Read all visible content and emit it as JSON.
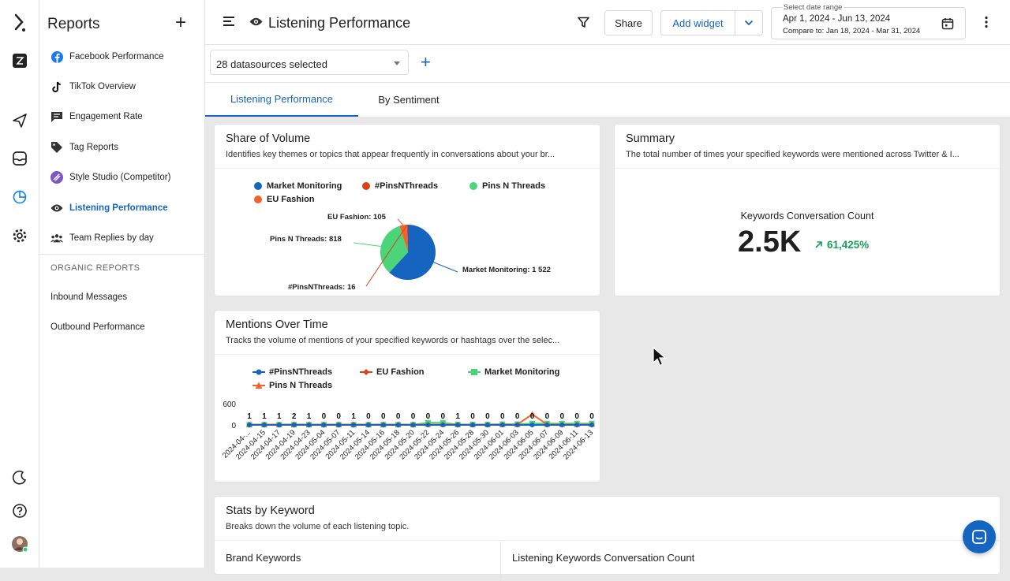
{
  "sidebar": {
    "title": "Reports",
    "items": [
      {
        "label": "Facebook Performance",
        "icon": "facebook-icon"
      },
      {
        "label": "TikTok Overview",
        "icon": "tiktok-icon"
      },
      {
        "label": "Engagement Rate",
        "icon": "comment-icon"
      },
      {
        "label": "Tag Reports",
        "icon": "tag-icon"
      },
      {
        "label": "Style Studio (Competitor)",
        "icon": "style-studio-icon"
      },
      {
        "label": "Listening Performance",
        "icon": "eye-icon",
        "active": true
      },
      {
        "label": "Team Replies by day",
        "icon": "team-icon"
      }
    ],
    "section_label": "ORGANIC REPORTS",
    "organic_items": [
      {
        "label": "Inbound Messages"
      },
      {
        "label": "Outbound Performance"
      }
    ]
  },
  "header": {
    "title": "Listening Performance",
    "share_label": "Share",
    "add_widget_label": "Add widget",
    "date_range_label": "Select date range",
    "date_range": "Apr 1, 2024 - Jun 13, 2024",
    "compare_to": "Compare to: Jan 18, 2024 - Mar 31, 2024"
  },
  "filters": {
    "datasources": "28 datasources selected"
  },
  "tabs": [
    {
      "label": "Listening Performance",
      "active": true
    },
    {
      "label": "By Sentiment"
    }
  ],
  "share_of_volume": {
    "title": "Share of Volume",
    "description": "Identifies key themes or topics that appear frequently in conversations about your br...",
    "legend": [
      {
        "name": "Market Monitoring",
        "color": "#1565c0"
      },
      {
        "name": "#PinsNThreads",
        "color": "#d84315"
      },
      {
        "name": "Pins N Threads",
        "color": "#4cd47a"
      },
      {
        "name": "EU Fashion",
        "color": "#f4622c"
      }
    ],
    "labels": {
      "eu": "EU Fashion: 105",
      "pins": "Pins N Threads: 818",
      "market": "Market Monitoring: 1 522",
      "pinsn": "#PinsNThreads: 16"
    }
  },
  "summary": {
    "title": "Summary",
    "description": "The total number of times your specified keywords were mentioned across Twitter & I...",
    "metric_label": "Keywords Conversation Count",
    "metric_value": "2.5K",
    "change": "61,425%",
    "change_color": "#1a9e5a"
  },
  "mentions": {
    "title": "Mentions Over Time",
    "description": "Tracks the volume of mentions of your specified keywords or hashtags over the selec...",
    "legend": [
      {
        "name": "#PinsNThreads",
        "color": "#1565c0"
      },
      {
        "name": "EU Fashion",
        "color": "#d84315"
      },
      {
        "name": "Market Monitoring",
        "color": "#4cd47a"
      },
      {
        "name": "Pins N Threads",
        "color": "#f4622c"
      }
    ]
  },
  "stats": {
    "title": "Stats by Keyword",
    "description": "Breaks down the volume of each listening topic.",
    "col1": "Brand Keywords",
    "col2": "Listening Keywords Conversation Count"
  },
  "chart_data": [
    {
      "type": "pie",
      "title": "Share of Volume",
      "categories": [
        "Market Monitoring",
        "Pins N Threads",
        "EU Fashion",
        "#PinsNThreads"
      ],
      "values": [
        1522,
        818,
        105,
        16
      ]
    },
    {
      "type": "line",
      "title": "Mentions Over Time",
      "yticks": [
        "600",
        "0"
      ],
      "ylim": [
        0,
        600
      ],
      "x": [
        "2024-04-...",
        "2024-04-15",
        "2024-04-17",
        "2024-04-19",
        "2024-04-23",
        "2024-05-04",
        "2024-05-07",
        "2024-05-11",
        "2024-05-14",
        "2024-05-16",
        "2024-05-18",
        "2024-05-20",
        "2024-05-22",
        "2024-05-24",
        "2024-05-26",
        "2024-05-28",
        "2024-05-30",
        "2024-06-01",
        "2024-06-03",
        "2024-06-05",
        "2024-06-07",
        "2024-06-09",
        "2024-06-11",
        "2024-06-13"
      ],
      "data_labels": [
        "1",
        "1",
        "1",
        "2",
        "1",
        "0",
        "0",
        "1",
        "0",
        "0",
        "0",
        "0",
        "0",
        "0",
        "1",
        "0",
        "0",
        "0",
        "0",
        "0",
        "0",
        "0",
        "0",
        "0"
      ],
      "series": [
        {
          "name": "#PinsNThreads",
          "values": [
            1,
            1,
            1,
            2,
            1,
            0,
            0,
            1,
            0,
            0,
            0,
            0,
            0,
            0,
            1,
            0,
            0,
            0,
            0,
            0,
            0,
            0,
            0,
            0
          ]
        },
        {
          "name": "EU Fashion",
          "values": [
            0,
            0,
            0,
            0,
            0,
            0,
            0,
            0,
            0,
            0,
            0,
            0,
            10,
            10,
            0,
            0,
            0,
            0,
            0,
            0,
            0,
            0,
            0,
            0
          ]
        },
        {
          "name": "Market Monitoring",
          "values": [
            5,
            5,
            5,
            5,
            5,
            5,
            5,
            5,
            5,
            5,
            5,
            5,
            60,
            60,
            10,
            10,
            10,
            20,
            20,
            40,
            40,
            40,
            40,
            40
          ]
        },
        {
          "name": "Pins N Threads",
          "values": [
            10,
            10,
            10,
            10,
            10,
            10,
            10,
            10,
            10,
            10,
            10,
            10,
            10,
            10,
            10,
            10,
            10,
            10,
            10,
            300,
            10,
            10,
            10,
            10
          ]
        }
      ]
    }
  ]
}
